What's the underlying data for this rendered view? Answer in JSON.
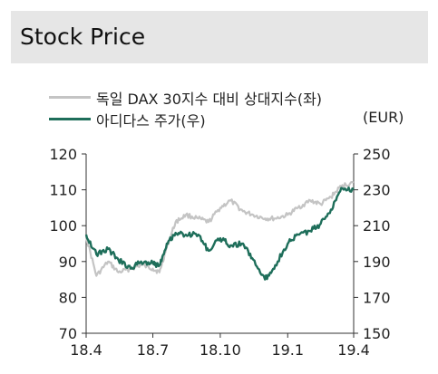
{
  "header": {
    "title": "Stock Price"
  },
  "colors": {
    "dax": "#c4c4c4",
    "adidas": "#1e6e5a",
    "header_bg": "#e6e6e6"
  },
  "chart_data": {
    "type": "line",
    "x_ticks": [
      "18.4",
      "18.7",
      "18.10",
      "19.1",
      "19.4"
    ],
    "y_left": {
      "min": 70,
      "max": 120,
      "ticks": [
        120,
        110,
        100,
        90,
        80,
        70
      ]
    },
    "y_right": {
      "min": 150,
      "max": 250,
      "ticks": [
        250,
        230,
        210,
        190,
        170,
        150
      ],
      "unit": "(EUR)"
    },
    "grid": false,
    "legend_placement": "top-left",
    "series": [
      {
        "name": "독일 DAX 30지수 대비 상대지수(좌)",
        "axis": "left",
        "x": [
          "2018-04-01",
          "2018-04-15",
          "2018-05-01",
          "2018-05-15",
          "2018-06-01",
          "2018-06-15",
          "2018-07-01",
          "2018-07-10",
          "2018-07-20",
          "2018-08-01",
          "2018-08-15",
          "2018-09-01",
          "2018-09-15",
          "2018-10-01",
          "2018-10-15",
          "2018-11-01",
          "2018-11-15",
          "2018-12-01",
          "2018-12-15",
          "2019-01-01",
          "2019-01-15",
          "2019-02-01",
          "2019-02-15",
          "2019-03-01",
          "2019-03-15",
          "2019-04-01"
        ],
        "values": [
          97,
          86,
          90,
          87,
          88,
          89,
          88,
          87,
          94,
          101,
          103,
          102,
          101,
          105,
          107,
          104,
          103,
          102,
          102,
          103,
          105,
          107,
          106,
          108,
          111,
          112
        ]
      },
      {
        "name": "아디다스 주가(우)",
        "axis": "right",
        "x": [
          "2018-04-01",
          "2018-04-15",
          "2018-05-01",
          "2018-05-15",
          "2018-06-01",
          "2018-06-15",
          "2018-07-01",
          "2018-07-10",
          "2018-07-20",
          "2018-08-01",
          "2018-08-15",
          "2018-09-01",
          "2018-09-15",
          "2018-10-01",
          "2018-10-15",
          "2018-11-01",
          "2018-11-15",
          "2018-12-01",
          "2018-12-15",
          "2019-01-01",
          "2019-01-15",
          "2019-02-01",
          "2019-02-15",
          "2019-03-01",
          "2019-03-15",
          "2019-04-01"
        ],
        "values": [
          205,
          194,
          197,
          191,
          186,
          190,
          189,
          188,
          200,
          206,
          205,
          205,
          196,
          203,
          199,
          200,
          191,
          180,
          188,
          200,
          205,
          207,
          211,
          219,
          231,
          230
        ]
      }
    ]
  }
}
